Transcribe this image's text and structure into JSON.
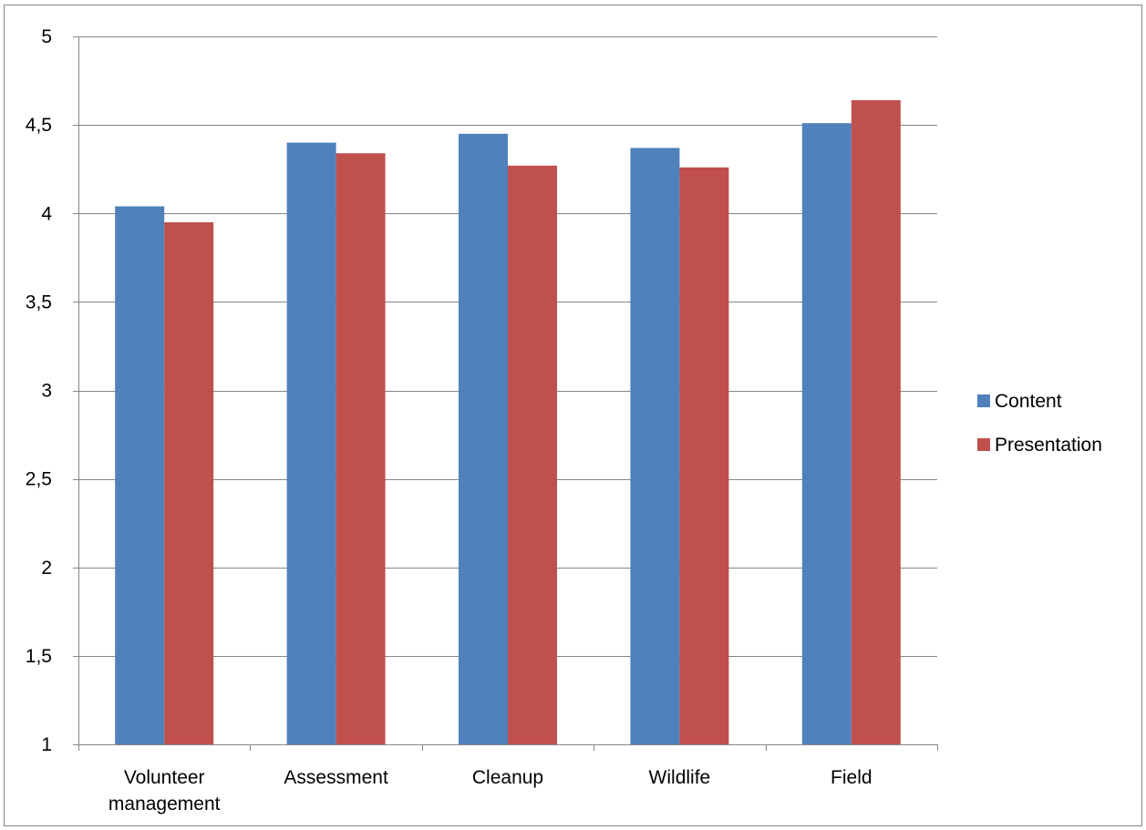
{
  "chart_data": {
    "type": "bar",
    "title": "",
    "xlabel": "",
    "ylabel": "",
    "categories": [
      [
        "Volunteer",
        "management"
      ],
      [
        "Assessment"
      ],
      [
        "Cleanup"
      ],
      [
        "Wildlife"
      ],
      [
        "Field"
      ]
    ],
    "series": [
      {
        "name": "Content",
        "color": "#4f81bd",
        "values": [
          4.04,
          4.4,
          4.45,
          4.37,
          4.51
        ]
      },
      {
        "name": "Presentation",
        "color": "#c0504d",
        "values": [
          3.95,
          4.34,
          4.27,
          4.26,
          4.64
        ]
      }
    ],
    "ylim": [
      1,
      5
    ],
    "yticks": [
      1,
      1.5,
      2,
      2.5,
      3,
      3.5,
      4,
      4.5,
      5
    ],
    "ytick_labels": [
      "1",
      "1,5",
      "2",
      "2,5",
      "3",
      "3,5",
      "4",
      "4,5",
      "5"
    ],
    "grid": true,
    "legend_position": "right"
  }
}
